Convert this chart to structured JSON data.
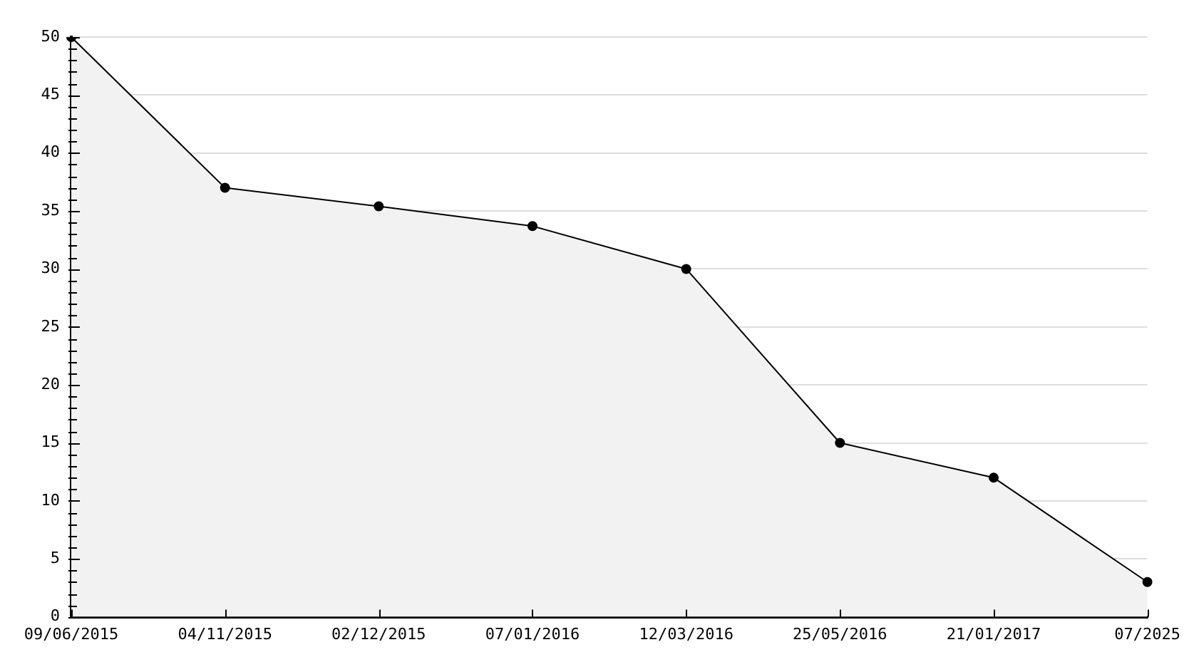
{
  "chart_data": {
    "type": "area",
    "categories": [
      "09/06/2015",
      "04/11/2015",
      "02/12/2015",
      "07/01/2016",
      "12/03/2016",
      "25/05/2016",
      "21/01/2017",
      "07/2025"
    ],
    "series": [
      {
        "color": "#000000",
        "values": [
          50,
          37,
          35.4,
          33.7,
          30,
          15,
          12,
          3
        ]
      }
    ],
    "ylim": [
      0,
      50
    ],
    "yticks": [
      0,
      {
        "value": 1,
        "label": null
      },
      {
        "value": 2,
        "label": null
      },
      {
        "value": 3,
        "label": null
      },
      {
        "value": 4,
        "label": null
      },
      5,
      {
        "value": 6,
        "label": null
      },
      {
        "value": 7,
        "label": null
      },
      {
        "value": 8,
        "label": null
      },
      {
        "value": 9,
        "label": null
      },
      10,
      {
        "value": 11,
        "label": null
      },
      {
        "value": 12,
        "label": null
      },
      {
        "value": 13,
        "label": null
      },
      {
        "value": 14,
        "label": null
      },
      15,
      {
        "value": 16,
        "label": null
      },
      {
        "value": 17,
        "label": null
      },
      {
        "value": 18,
        "label": null
      },
      {
        "value": 19,
        "label": null
      },
      20,
      {
        "value": 21,
        "label": null
      },
      {
        "value": 22,
        "label": null
      },
      {
        "value": 23,
        "label": null
      },
      {
        "value": 24,
        "label": null
      },
      25,
      {
        "value": 26,
        "label": null
      },
      {
        "value": 27,
        "label": null
      },
      {
        "value": 28,
        "label": null
      },
      {
        "value": 29,
        "label": null
      },
      30,
      {
        "value": 31,
        "label": null
      },
      {
        "value": 32,
        "label": null
      },
      {
        "value": 33,
        "label": null
      },
      {
        "value": 34,
        "label": null
      },
      35,
      {
        "value": 36,
        "label": null
      },
      {
        "value": 37,
        "label": null
      },
      {
        "value": 38,
        "label": null
      },
      {
        "value": 39,
        "label": null
      },
      40,
      {
        "value": 41,
        "label": null
      },
      {
        "value": 42,
        "label": null
      },
      {
        "value": 43,
        "label": null
      },
      {
        "value": 44,
        "label": null
      },
      45,
      {
        "value": 46,
        "label": null
      },
      {
        "value": 47,
        "label": null
      },
      {
        "value": 48,
        "label": null
      },
      {
        "value": 49,
        "label": null
      },
      50
    ],
    "grid": "y",
    "marker": "circle",
    "line_style": "solid",
    "legend": false
  }
}
